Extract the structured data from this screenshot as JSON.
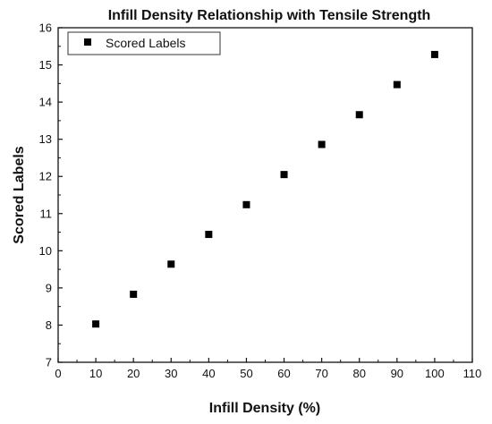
{
  "chart_data": {
    "type": "scatter",
    "title": "Infill Density Relationship with Tensile Strength",
    "xlabel": "Infill Density (%)",
    "ylabel": "Scored Labels",
    "xlim": [
      0,
      110
    ],
    "ylim": [
      7,
      16
    ],
    "xticks": [
      "0",
      "10",
      "20",
      "30",
      "40",
      "50",
      "60",
      "70",
      "80",
      "90",
      "100",
      "110"
    ],
    "yticks": [
      "7",
      "8",
      "9",
      "10",
      "11",
      "12",
      "13",
      "14",
      "15",
      "16"
    ],
    "grid": false,
    "legend_position": "top-left",
    "marker": "square",
    "marker_color": "#000000",
    "series": [
      {
        "name": "Scored Labels",
        "x": [
          10,
          20,
          30,
          40,
          50,
          60,
          70,
          80,
          90,
          100
        ],
        "y": [
          8.03,
          8.83,
          9.64,
          10.44,
          11.24,
          12.05,
          12.86,
          13.66,
          14.47,
          15.28
        ]
      }
    ]
  }
}
